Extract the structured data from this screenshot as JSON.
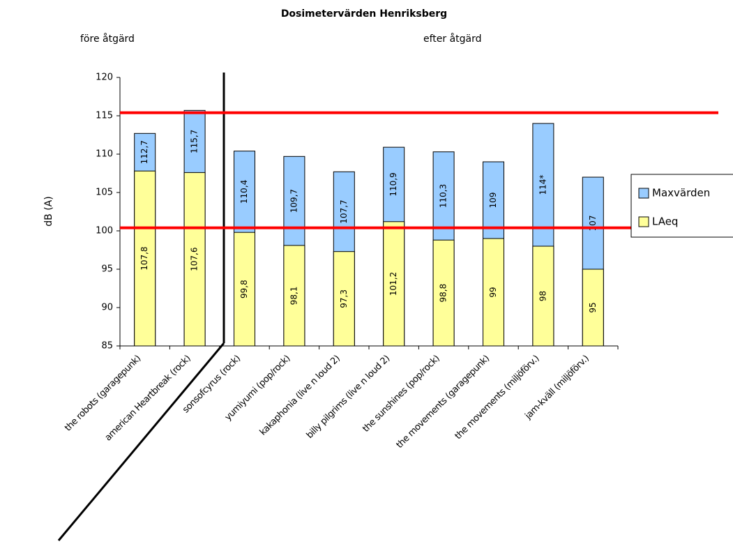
{
  "chart_data": {
    "type": "overlapped-bar",
    "title": "Dosimetervärden Henriksberg",
    "annotations": [
      "före åtgärd",
      "efter åtgärd"
    ],
    "y_label": "dB (A)",
    "categories": [
      "the robots (garagepunk)",
      "american Heartbreak (rock)",
      "sonsofcyrus (rock)",
      "yumiyumi (pop/rock)",
      "kakaphonia (live n loud 2)",
      "billy pilgrims (live n loud 2)",
      "the sunshines (pop/rock)",
      "the movements (garagepunk)",
      "the movements (miljöförv.)",
      "jam-kväll (miljöförv.)"
    ],
    "series": [
      {
        "name": "Maxvärden",
        "color": "#99ccff",
        "values": [
          112.7,
          115.7,
          110.4,
          109.7,
          107.7,
          110.9,
          110.3,
          109,
          114,
          107
        ],
        "value_labels": [
          "112,7",
          "115,7",
          "110,4",
          "109,7",
          "107,7",
          "110,9",
          "110,3",
          "109",
          "114*",
          "107"
        ]
      },
      {
        "name": "LAeq",
        "color": "#ffff99",
        "values": [
          107.8,
          107.6,
          99.8,
          98.1,
          97.3,
          101.2,
          98.8,
          99,
          98,
          95
        ],
        "value_labels": [
          "107,8",
          "107,6",
          "99,8",
          "98,1",
          "97,3",
          "101,2",
          "98,8",
          "99",
          "98",
          "95"
        ]
      }
    ],
    "ylim": [
      85,
      120
    ],
    "yticks": [
      85,
      90,
      95,
      100,
      105,
      110,
      115,
      120
    ],
    "reference_lines": [
      100.4,
      115.4
    ],
    "reference_color": "#ff0000",
    "legend": "right"
  }
}
